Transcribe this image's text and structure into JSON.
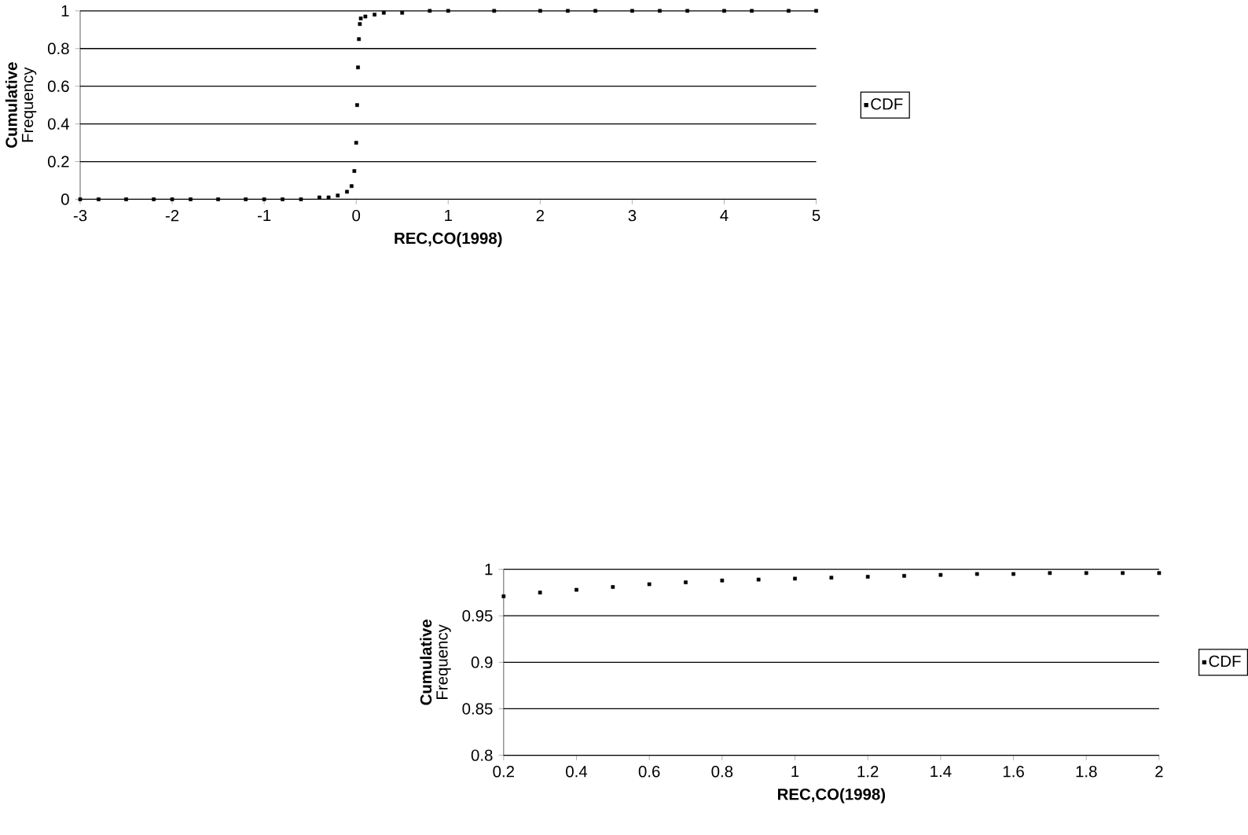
{
  "chart_data": [
    {
      "type": "scatter",
      "xlabel": "REC,CO(1998)",
      "ylabel": "**Cumulative** Frequency",
      "xlim": [
        -3,
        5
      ],
      "ylim": [
        0,
        1
      ],
      "xticks": [
        -3,
        -2,
        -1,
        0,
        1,
        2,
        3,
        4,
        5
      ],
      "yticks": [
        0,
        0.2,
        0.4,
        0.6,
        0.8,
        1
      ],
      "grid": "y",
      "legend": "right",
      "marker": "square",
      "series": [
        {
          "name": "CDF",
          "color": "#000000",
          "x": [
            -3,
            -2.8,
            -2.5,
            -2.2,
            -2,
            -1.8,
            -1.5,
            -1.2,
            -1,
            -0.8,
            -0.6,
            -0.4,
            -0.3,
            -0.2,
            -0.1,
            -0.05,
            -0.02,
            0,
            0.01,
            0.02,
            0.03,
            0.04,
            0.05,
            0.1,
            0.2,
            0.3,
            0.5,
            0.8,
            1,
            1.5,
            2,
            2.3,
            2.6,
            3,
            3.3,
            3.6,
            4,
            4.3,
            4.7,
            5
          ],
          "values": [
            0,
            0,
            0,
            0,
            0,
            0,
            0,
            0,
            0,
            0,
            0,
            0.01,
            0.01,
            0.02,
            0.04,
            0.07,
            0.15,
            0.3,
            0.5,
            0.7,
            0.85,
            0.93,
            0.96,
            0.97,
            0.98,
            0.99,
            0.99,
            1,
            1,
            1,
            1,
            1,
            1,
            1,
            1,
            1,
            1,
            1,
            1,
            1
          ]
        }
      ]
    },
    {
      "type": "scatter",
      "xlabel": "REC,CO(1998)",
      "ylabel": "**Cumulative** Frequency",
      "xlim": [
        0.2,
        2
      ],
      "ylim": [
        0.8,
        1
      ],
      "xticks": [
        0.2,
        0.4,
        0.6,
        0.8,
        1,
        1.2,
        1.4,
        1.6,
        1.8,
        2
      ],
      "yticks": [
        0.8,
        0.85,
        0.9,
        0.95,
        1
      ],
      "grid": "y",
      "legend": "right",
      "marker": "square",
      "series": [
        {
          "name": "CDF",
          "color": "#000000",
          "x": [
            0.2,
            0.3,
            0.4,
            0.5,
            0.6,
            0.7,
            0.8,
            0.9,
            1,
            1.1,
            1.2,
            1.3,
            1.4,
            1.5,
            1.6,
            1.7,
            1.8,
            1.9,
            2
          ],
          "values": [
            0.971,
            0.975,
            0.978,
            0.981,
            0.984,
            0.986,
            0.988,
            0.989,
            0.99,
            0.991,
            0.992,
            0.993,
            0.994,
            0.995,
            0.995,
            0.996,
            0.996,
            0.996,
            0.996
          ]
        }
      ]
    }
  ]
}
